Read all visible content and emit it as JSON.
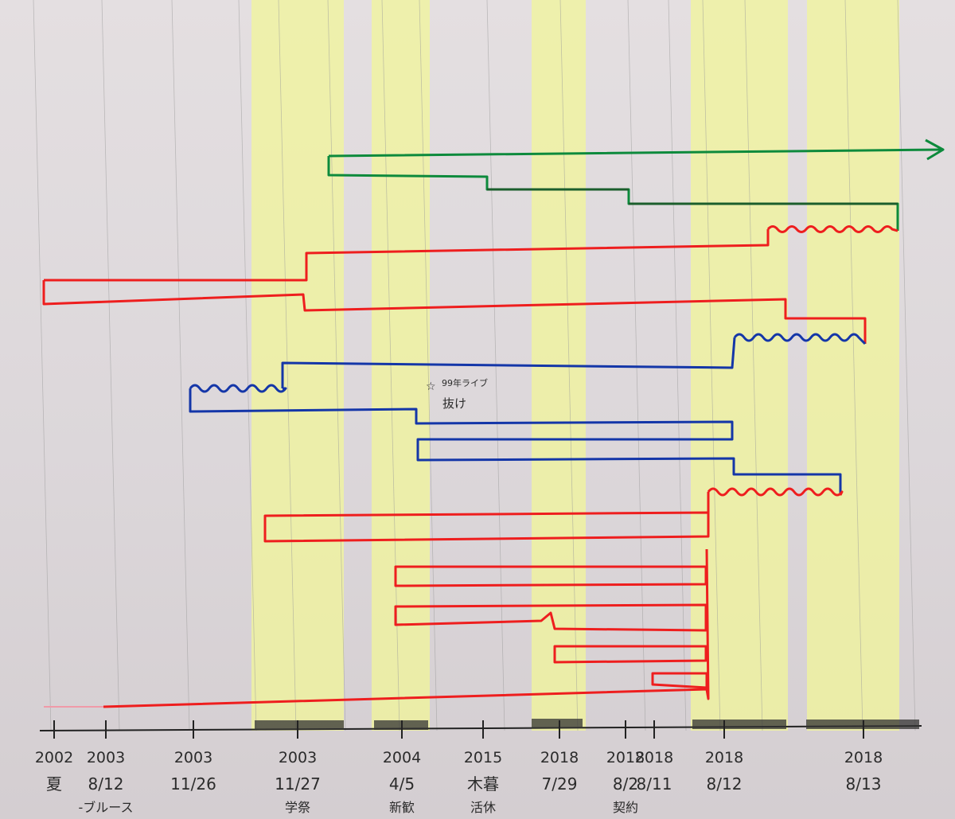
{
  "timeline": {
    "ticks": [
      {
        "year": "2002",
        "date": "夏",
        "sub": ""
      },
      {
        "year": "2003",
        "date": "8/12",
        "sub": "-ブルース"
      },
      {
        "year": "2003",
        "date": "11/26",
        "sub": ""
      },
      {
        "year": "2003",
        "date": "11/27",
        "sub": "学祭"
      },
      {
        "year": "2004",
        "date": "4/5",
        "sub": "新歓"
      },
      {
        "year": "2015",
        "date": "木暮",
        "sub": "活休"
      },
      {
        "year": "2018",
        "date": "7/29",
        "sub": ""
      },
      {
        "year": "2018",
        "date": "8/2",
        "sub": "契約"
      },
      {
        "year": "2018",
        "date": "8/11",
        "sub": ""
      },
      {
        "year": "2018",
        "date": "8/12",
        "sub": ""
      },
      {
        "year": "2018",
        "date": "8/13",
        "sub": ""
      }
    ]
  },
  "annotation": {
    "mark": "☆",
    "line1": "99年ライブ",
    "line2": "抜け"
  },
  "colors": {
    "paper": "#dcd7da",
    "rule": "#9a9a9a",
    "highlight": "#f1f59a",
    "green": "#0d8a3c",
    "darkgreen": "#1b5e2c",
    "red": "#ee1e1e",
    "blue": "#1436a8",
    "axis": "#222222"
  }
}
